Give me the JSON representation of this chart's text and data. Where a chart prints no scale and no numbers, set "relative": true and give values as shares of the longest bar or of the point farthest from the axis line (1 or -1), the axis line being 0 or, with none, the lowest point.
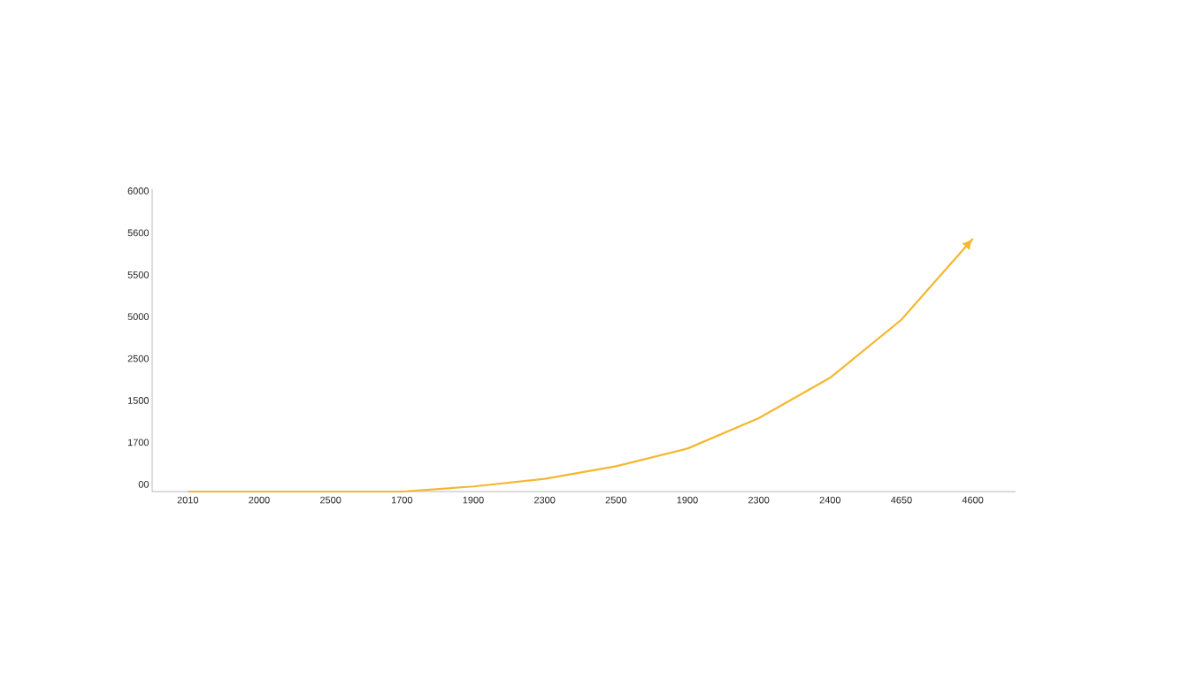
{
  "chart_data": {
    "type": "line",
    "relative": true,
    "categories": [
      "2010",
      "2000",
      "2500",
      "1700",
      "1900",
      "2300",
      "2500",
      "1900",
      "2300",
      "2400",
      "4650",
      "4600"
    ],
    "series": [
      {
        "color": "#f5b731",
        "values": [
          0.0,
          0.0,
          0.0,
          0.0,
          0.02,
          0.05,
          0.1,
          0.17,
          0.29,
          0.45,
          0.68,
          1
        ]
      }
    ],
    "annotations": [
      "6000",
      "5600",
      "5500",
      "5000",
      "2500",
      "1500",
      "1700",
      "00"
    ],
    "grid": false,
    "marker": "none",
    "line_style": "solid"
  }
}
